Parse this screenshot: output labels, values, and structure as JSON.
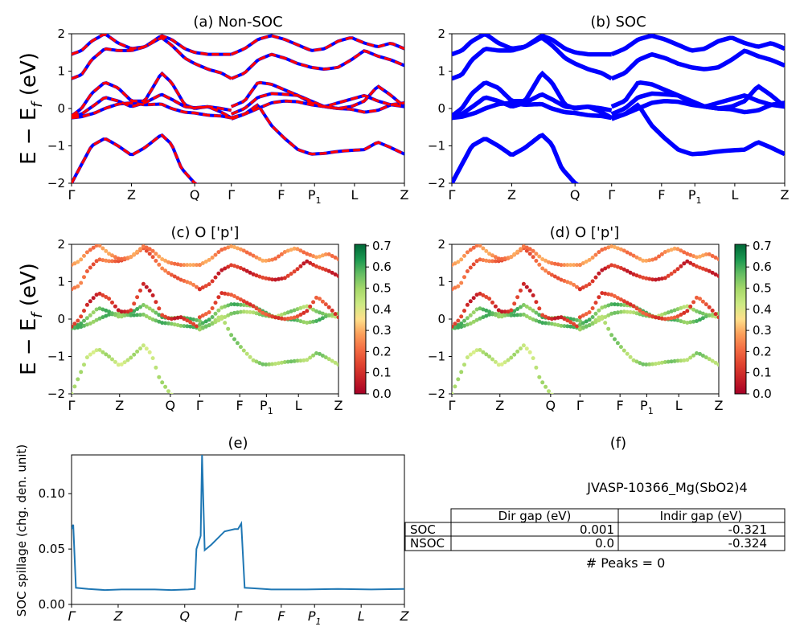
{
  "chart_data": [
    {
      "id": "a",
      "type": "line",
      "title": "(a) Non-SOC",
      "ylabel_main": "E − E",
      "ylabel_sub": "f",
      "ylabel_unit": " (eV)",
      "ylim": [
        -2,
        2
      ],
      "yticks": [
        -2,
        -1,
        0,
        1,
        2
      ],
      "kpath": [
        {
          "label": "Γ",
          "x": 0
        },
        {
          "label": "Z",
          "x": 0.18
        },
        {
          "label": "Q",
          "x": 0.37
        },
        {
          "label": "Γ",
          "x": 0.48
        },
        {
          "label": "F",
          "x": 0.63
        },
        {
          "label": "P",
          "sub": "1",
          "x": 0.73
        },
        {
          "label": "L",
          "x": 0.85
        },
        {
          "label": "Z",
          "x": 1.0
        }
      ],
      "series": [
        {
          "color": "#0000ff",
          "dash": "none"
        },
        {
          "color": "#ff0000",
          "dash": "dashed"
        }
      ],
      "bands": [
        {
          "x": [
            0,
            0.03,
            0.06,
            0.1,
            0.14,
            0.18,
            0.22,
            0.27,
            0.3,
            0.33,
            0.37,
            0.41,
            0.45,
            0.48
          ],
          "y": [
            -2.0,
            -1.5,
            -1.0,
            -0.8,
            -1.0,
            -1.25,
            -1.05,
            -0.7,
            -0.95,
            -1.6,
            -2.0,
            -2.2,
            -2.3,
            -2.2
          ]
        },
        {
          "x": [
            0.48,
            0.52,
            0.56,
            0.6,
            0.64,
            0.68,
            0.72,
            0.76,
            0.8,
            0.84,
            0.88,
            0.92,
            0.96,
            1.0
          ],
          "y": [
            -0.28,
            -0.15,
            0.1,
            -0.45,
            -0.8,
            -1.1,
            -1.22,
            -1.2,
            -1.15,
            -1.12,
            -1.1,
            -0.9,
            -1.05,
            -1.22
          ]
        },
        {
          "x": [
            0,
            0.03,
            0.07,
            0.1,
            0.14,
            0.18,
            0.22,
            0.27,
            0.3,
            0.34,
            0.37,
            0.41,
            0.45,
            0.48
          ],
          "y": [
            -0.25,
            -0.22,
            -0.12,
            0.0,
            0.12,
            0.15,
            0.1,
            0.12,
            0.0,
            -0.1,
            -0.12,
            -0.18,
            -0.2,
            -0.25
          ]
        },
        {
          "x": [
            0,
            0.03,
            0.07,
            0.1,
            0.14,
            0.18,
            0.22,
            0.27,
            0.3,
            0.34,
            0.37,
            0.41,
            0.45,
            0.48
          ],
          "y": [
            -0.2,
            -0.15,
            0.1,
            0.3,
            0.2,
            0.05,
            0.15,
            0.38,
            0.25,
            0.05,
            0.02,
            0.05,
            0.0,
            -0.05
          ]
        },
        {
          "x": [
            0,
            0.03,
            0.06,
            0.1,
            0.14,
            0.18,
            0.22,
            0.27,
            0.3,
            0.34,
            0.37,
            0.41,
            0.45,
            0.48
          ],
          "y": [
            -0.2,
            0.0,
            0.4,
            0.7,
            0.55,
            0.2,
            0.2,
            0.95,
            0.7,
            0.1,
            0.0,
            0.05,
            -0.1,
            -0.25
          ]
        },
        {
          "x": [
            0.48,
            0.52,
            0.56,
            0.6,
            0.64,
            0.68,
            0.72,
            0.76,
            0.8,
            0.84,
            0.88,
            0.92,
            0.96,
            1.0
          ],
          "y": [
            -0.25,
            -0.15,
            0.0,
            0.15,
            0.2,
            0.18,
            0.1,
            0.05,
            0.15,
            0.25,
            0.35,
            0.2,
            0.1,
            0.05
          ]
        },
        {
          "x": [
            0.48,
            0.52,
            0.56,
            0.6,
            0.64,
            0.68,
            0.72,
            0.76,
            0.8,
            0.84,
            0.88,
            0.92,
            0.96,
            1.0
          ],
          "y": [
            -0.15,
            0.0,
            0.3,
            0.4,
            0.38,
            0.35,
            0.2,
            0.05,
            0.0,
            -0.02,
            -0.1,
            -0.05,
            0.1,
            0.15
          ]
        },
        {
          "x": [
            0.48,
            0.52,
            0.56,
            0.6,
            0.64,
            0.68,
            0.72,
            0.76,
            0.8,
            0.84,
            0.88,
            0.92,
            0.96,
            1.0
          ],
          "y": [
            0.05,
            0.2,
            0.7,
            0.65,
            0.5,
            0.35,
            0.15,
            0.05,
            0.0,
            0.05,
            0.2,
            0.6,
            0.35,
            0.05
          ]
        },
        {
          "x": [
            0,
            0.03,
            0.06,
            0.1,
            0.14,
            0.18,
            0.22,
            0.27,
            0.3,
            0.34,
            0.37,
            0.41,
            0.45,
            0.48
          ],
          "y": [
            0.8,
            0.9,
            1.3,
            1.6,
            1.55,
            1.55,
            1.65,
            1.9,
            1.7,
            1.35,
            1.2,
            1.05,
            0.95,
            0.8
          ]
        },
        {
          "x": [
            0,
            0.03,
            0.06,
            0.1,
            0.14,
            0.18,
            0.22,
            0.27,
            0.3,
            0.34,
            0.37,
            0.41,
            0.45,
            0.48
          ],
          "y": [
            1.45,
            1.55,
            1.8,
            2.0,
            1.75,
            1.6,
            1.65,
            1.95,
            1.85,
            1.6,
            1.5,
            1.45,
            1.45,
            1.45
          ]
        },
        {
          "x": [
            0.48,
            0.52,
            0.56,
            0.6,
            0.64,
            0.68,
            0.72,
            0.76,
            0.8,
            0.84,
            0.88,
            0.92,
            0.96,
            1.0
          ],
          "y": [
            0.8,
            0.95,
            1.3,
            1.45,
            1.35,
            1.2,
            1.1,
            1.05,
            1.1,
            1.3,
            1.55,
            1.4,
            1.3,
            1.15
          ]
        },
        {
          "x": [
            0.48,
            0.52,
            0.56,
            0.6,
            0.64,
            0.68,
            0.72,
            0.76,
            0.8,
            0.84,
            0.88,
            0.92,
            0.96,
            1.0
          ],
          "y": [
            1.45,
            1.6,
            1.85,
            1.95,
            1.85,
            1.7,
            1.55,
            1.6,
            1.8,
            1.9,
            1.75,
            1.65,
            1.75,
            1.6
          ]
        }
      ]
    },
    {
      "id": "b",
      "type": "line",
      "title": "(b) SOC",
      "ylim": [
        -2,
        2
      ],
      "yticks": [
        -2,
        -1,
        0,
        1,
        2
      ],
      "kpath": [
        {
          "label": "Γ",
          "x": 0
        },
        {
          "label": "Z",
          "x": 0.18
        },
        {
          "label": "Q",
          "x": 0.37
        },
        {
          "label": "Γ",
          "x": 0.48
        },
        {
          "label": "F",
          "x": 0.63
        },
        {
          "label": "P",
          "sub": "1",
          "x": 0.73
        },
        {
          "label": "L",
          "x": 0.85
        },
        {
          "label": "Z",
          "x": 1.0
        }
      ],
      "series": [
        {
          "color": "#0000ff",
          "dash": "none"
        }
      ],
      "bands": "same-as-a"
    },
    {
      "id": "c",
      "type": "scatter",
      "title": "(c)  O ['p']",
      "ylim": [
        -2,
        2
      ],
      "colorbar": {
        "ticks": [
          "0.0",
          "0.1",
          "0.2",
          "0.3",
          "0.4",
          "0.5",
          "0.6",
          "0.7"
        ],
        "cmap": "RdYlGn",
        "range": [
          0,
          0.7
        ]
      },
      "kpath": [
        {
          "label": "Γ",
          "x": 0
        },
        {
          "label": "Z",
          "x": 0.18
        },
        {
          "label": "Q",
          "x": 0.37
        },
        {
          "label": "Γ",
          "x": 0.48
        },
        {
          "label": "F",
          "x": 0.63
        },
        {
          "label": "P",
          "sub": "1",
          "x": 0.73
        },
        {
          "label": "L",
          "x": 0.85
        },
        {
          "label": "Z",
          "x": 1.0
        }
      ],
      "band_weights": [
        0.45,
        0.5,
        0.55,
        0.55,
        0.1,
        0.5,
        0.55,
        0.15,
        0.2,
        0.25,
        0.1,
        0.25
      ]
    },
    {
      "id": "d",
      "type": "scatter",
      "title": "(d) O ['p']",
      "ylim": [
        -2,
        2
      ],
      "colorbar": {
        "ticks": [
          "0.0",
          "0.1",
          "0.2",
          "0.3",
          "0.4",
          "0.5",
          "0.6",
          "0.7"
        ],
        "cmap": "RdYlGn",
        "range": [
          0,
          0.7
        ]
      },
      "kpath": [
        {
          "label": "Γ",
          "x": 0
        },
        {
          "label": "Z",
          "x": 0.18
        },
        {
          "label": "Q",
          "x": 0.37
        },
        {
          "label": "Γ",
          "x": 0.48
        },
        {
          "label": "F",
          "x": 0.63
        },
        {
          "label": "P",
          "sub": "1",
          "x": 0.73
        },
        {
          "label": "L",
          "x": 0.85
        },
        {
          "label": "Z",
          "x": 1.0
        }
      ],
      "band_weights": [
        0.45,
        0.5,
        0.55,
        0.55,
        0.1,
        0.5,
        0.55,
        0.15,
        0.2,
        0.25,
        0.1,
        0.25
      ]
    },
    {
      "id": "e",
      "type": "line",
      "title": "(e)",
      "ylabel": "SOC spillage (chg. den. unit)",
      "ylim": [
        0,
        0.135
      ],
      "yticks": [
        0.0,
        0.05,
        0.1
      ],
      "ytick_labels": [
        "0.00",
        "0.05",
        "0.10"
      ],
      "kpath": [
        {
          "label": "Γ",
          "x": 0
        },
        {
          "label": "Z",
          "x": 0.14
        },
        {
          "label": "Q",
          "x": 0.34
        },
        {
          "label": "Γ",
          "x": 0.5
        },
        {
          "label": "F",
          "x": 0.63
        },
        {
          "label": "P",
          "sub": "1",
          "x": 0.73
        },
        {
          "label": "L",
          "x": 0.87
        },
        {
          "label": "Z",
          "x": 1.0
        }
      ],
      "line_color": "#1f77b4",
      "x": [
        0,
        0.005,
        0.013,
        0.05,
        0.1,
        0.15,
        0.2,
        0.25,
        0.3,
        0.35,
        0.37,
        0.375,
        0.388,
        0.392,
        0.4,
        0.42,
        0.46,
        0.49,
        0.5,
        0.51,
        0.52,
        0.55,
        0.6,
        0.7,
        0.8,
        0.9,
        1.0
      ],
      "values": [
        0.068,
        0.072,
        0.015,
        0.014,
        0.013,
        0.0135,
        0.0135,
        0.0135,
        0.013,
        0.0135,
        0.014,
        0.05,
        0.062,
        0.135,
        0.049,
        0.054,
        0.066,
        0.068,
        0.068,
        0.073,
        0.015,
        0.0145,
        0.0135,
        0.0135,
        0.014,
        0.0135,
        0.014
      ]
    },
    {
      "id": "f",
      "type": "table",
      "title": "(f)",
      "caption": "JVASP-10366_Mg(SbO2)4",
      "columns": [
        "",
        "Dir gap (eV)",
        "Indir gap (eV)"
      ],
      "rows": [
        [
          "SOC",
          "0.001",
          "-0.321"
        ],
        [
          "NSOC",
          "0.0",
          "-0.324"
        ]
      ],
      "footer": "# Peaks = 0"
    }
  ]
}
